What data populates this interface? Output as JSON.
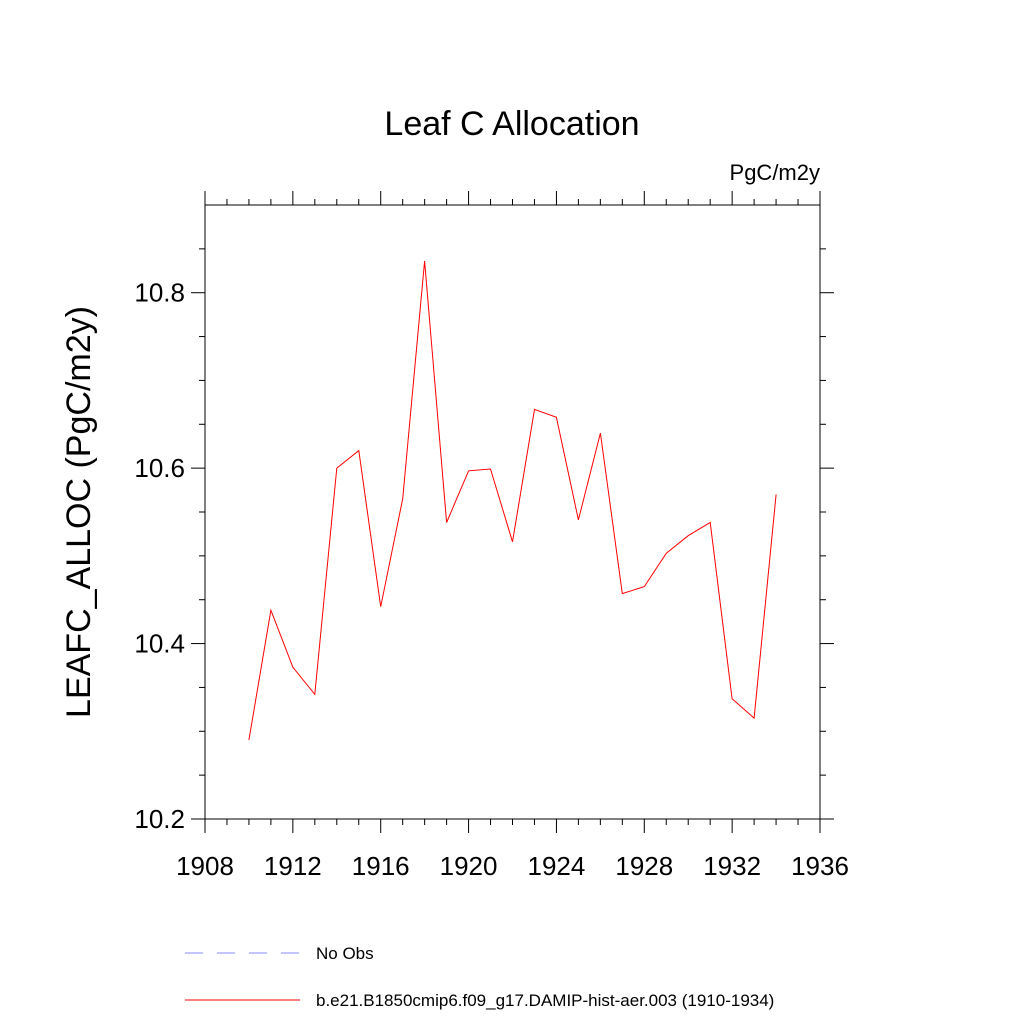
{
  "chart_data": {
    "type": "line",
    "title": "Leaf C Allocation",
    "units_label": "PgC/m2y",
    "xlabel": "",
    "ylabel": "LEAFC_ALLOC  (PgC/m2y)",
    "xlim": [
      1908,
      1936
    ],
    "ylim": [
      10.2,
      10.9
    ],
    "x_ticks": [
      1908,
      1912,
      1916,
      1920,
      1924,
      1928,
      1932,
      1936
    ],
    "x_tick_labels": [
      "1908",
      "1912",
      "1916",
      "1920",
      "1924",
      "1928",
      "1932",
      "1936"
    ],
    "y_ticks": [
      10.2,
      10.4,
      10.6,
      10.8
    ],
    "y_tick_labels": [
      "10.2",
      "10.4",
      "10.6",
      "10.8"
    ],
    "grid": false,
    "legend_position": "bottom",
    "series": [
      {
        "name": "b.e21.B1850cmip6.f09_g17.DAMIP-hist-aer.003 (1910-1934)",
        "color": "#ff0000",
        "style": "solid",
        "x": [
          1910,
          1911,
          1912,
          1913,
          1914,
          1915,
          1916,
          1917,
          1918,
          1919,
          1920,
          1921,
          1922,
          1923,
          1924,
          1925,
          1926,
          1927,
          1928,
          1929,
          1930,
          1931,
          1932,
          1933,
          1934
        ],
        "values": [
          10.29,
          10.438,
          10.373,
          10.342,
          10.6,
          10.62,
          10.442,
          10.565,
          10.836,
          10.538,
          10.597,
          10.599,
          10.516,
          10.667,
          10.658,
          10.541,
          10.64,
          10.457,
          10.465,
          10.503,
          10.523,
          10.538,
          10.337,
          10.315,
          10.57
        ]
      }
    ],
    "legend": [
      {
        "label": "No Obs",
        "color": "#8888ff",
        "style": "dashed"
      },
      {
        "label": "b.e21.B1850cmip6.f09_g17.DAMIP-hist-aer.003 (1910-1934)",
        "color": "#ff0000",
        "style": "solid"
      }
    ]
  }
}
